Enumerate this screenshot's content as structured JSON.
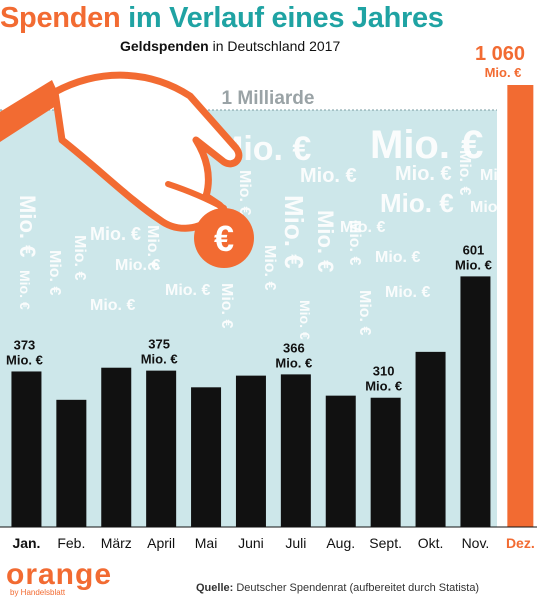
{
  "header": {
    "title_part1": "Spenden",
    "title_part2": "im Verlauf eines Jahres",
    "subtitle_bold": "Geldspenden",
    "subtitle_rest": " in Deutschland 2017"
  },
  "chart_data": {
    "type": "bar",
    "title": "Spenden im Verlauf eines Jahres",
    "subtitle": "Geldspenden in Deutschland 2017",
    "unit": "Mio. €",
    "categories": [
      "Jan.",
      "Feb.",
      "März",
      "April",
      "Mai",
      "Juni",
      "Juli",
      "Aug.",
      "Sept.",
      "Okt.",
      "Nov.",
      "Dez."
    ],
    "values": [
      373,
      305,
      382,
      375,
      335,
      363,
      366,
      315,
      310,
      420,
      601,
      1060
    ],
    "labeled_values": {
      "Jan.": "373",
      "April": "375",
      "Juli": "366",
      "Sept.": "310",
      "Nov.": "601",
      "Dez.": "1 060"
    },
    "highlight": "Dez.",
    "reference_line": {
      "value": 1000,
      "label": "1 Milliarde"
    },
    "ylim": [
      0,
      1060
    ],
    "bar_color": "#111111",
    "highlight_color": "#f26b32",
    "background_color": "#cde7ea",
    "watermark_text": "Mio. €"
  },
  "footer": {
    "source_label": "Quelle:",
    "source_text": " Deutscher Spendenrat (aufbereitet durch Statista)",
    "logo_word": "orange",
    "logo_sub": "by Handelsblatt"
  }
}
